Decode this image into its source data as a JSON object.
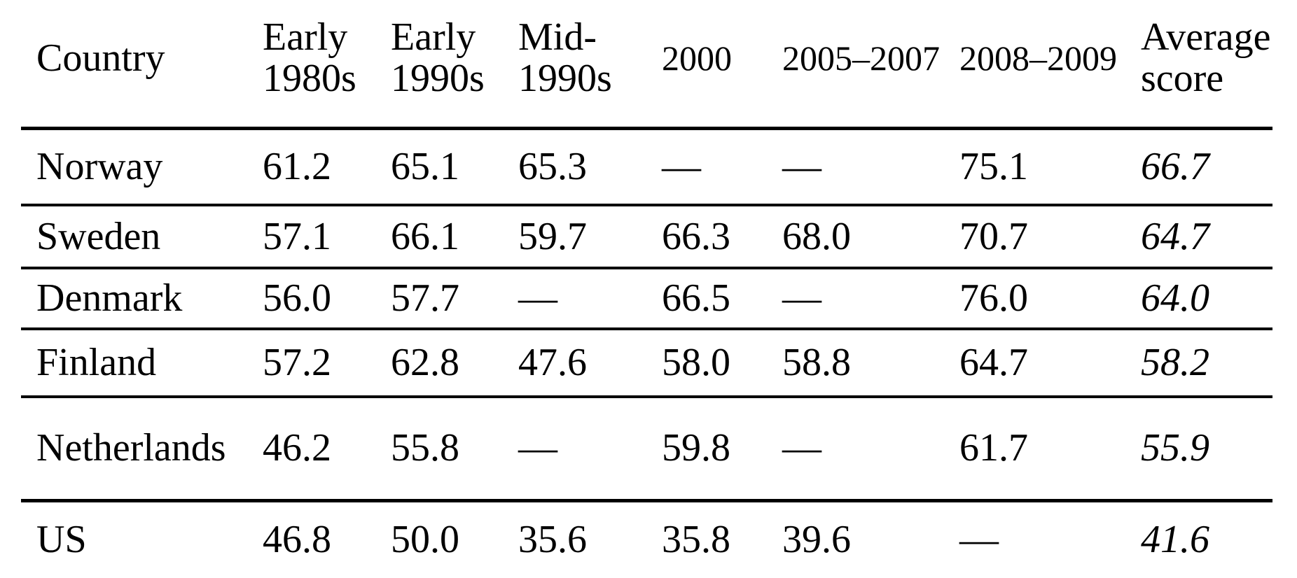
{
  "colors": {
    "background": "#ffffff",
    "text": "#000000",
    "rule": "#000000"
  },
  "table": {
    "columns": [
      {
        "key": "country",
        "label": "Country",
        "small": false
      },
      {
        "key": "early-1980s",
        "label": "Early\n1980s",
        "small": false
      },
      {
        "key": "early-1990s",
        "label": "Early\n1990s",
        "small": false
      },
      {
        "key": "mid-1990s",
        "label": "Mid-\n1990s",
        "small": false
      },
      {
        "key": "2000",
        "label": "2000",
        "small": true
      },
      {
        "key": "2005-2007",
        "label": "2005–2007",
        "small": true
      },
      {
        "key": "2008-2009",
        "label": "2008–2009",
        "small": true
      },
      {
        "key": "average-score",
        "label": "Average\nscore",
        "small": false
      }
    ],
    "missing_value_glyph": "—",
    "rows": [
      {
        "country": "Norway",
        "values": [
          "61.2",
          "65.1",
          "65.3",
          "—",
          "—",
          "75.1"
        ],
        "average": "66.7"
      },
      {
        "country": "Sweden",
        "values": [
          "57.1",
          "66.1",
          "59.7",
          "66.3",
          "68.0",
          "70.7"
        ],
        "average": "64.7"
      },
      {
        "country": "Denmark",
        "values": [
          "56.0",
          "57.7",
          "—",
          "66.5",
          "—",
          "76.0"
        ],
        "average": "64.0"
      },
      {
        "country": "Finland",
        "values": [
          "57.2",
          "62.8",
          "47.6",
          "58.0",
          "58.8",
          "64.7"
        ],
        "average": "58.2"
      },
      {
        "country": "Netherlands",
        "values": [
          "46.2",
          "55.8",
          "—",
          "59.8",
          "—",
          "61.7"
        ],
        "average": "55.9"
      },
      {
        "country": "US",
        "values": [
          "46.8",
          "50.0",
          "35.6",
          "35.8",
          "39.6",
          "—"
        ],
        "average": "41.6"
      }
    ]
  }
}
